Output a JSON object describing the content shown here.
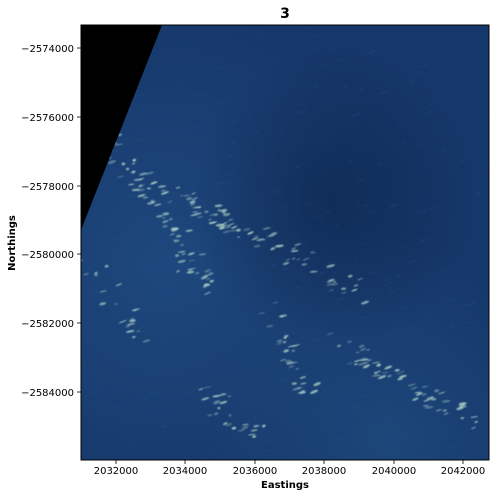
{
  "figure": {
    "title": "3",
    "xlabel": "Eastings",
    "ylabel": "Northings",
    "x_ticks": [
      "2032000",
      "2034000",
      "2036000",
      "2038000",
      "2040000",
      "2042000"
    ],
    "y_ticks": [
      "−2574000",
      "−2576000",
      "−2578000",
      "−2580000",
      "−2582000",
      "−2584000"
    ]
  },
  "map_data": {
    "type": "raster_image",
    "projection_axes": {
      "x_range": [
        2031100,
        2042850
      ],
      "y_range": [
        -2585950,
        -2573300
      ],
      "x_tick_values": [
        2032000,
        2034000,
        2036000,
        2038000,
        2040000,
        2042000
      ],
      "y_tick_values": [
        -2574000,
        -2576000,
        -2578000,
        -2580000,
        -2582000,
        -2584000
      ]
    },
    "colors": {
      "ocean_deep": "#102a52",
      "ocean_mid": "#17386a",
      "ocean_light": "#1d4478",
      "whitecaps": "#b8d8cc",
      "nodata": "#000000"
    }
  }
}
